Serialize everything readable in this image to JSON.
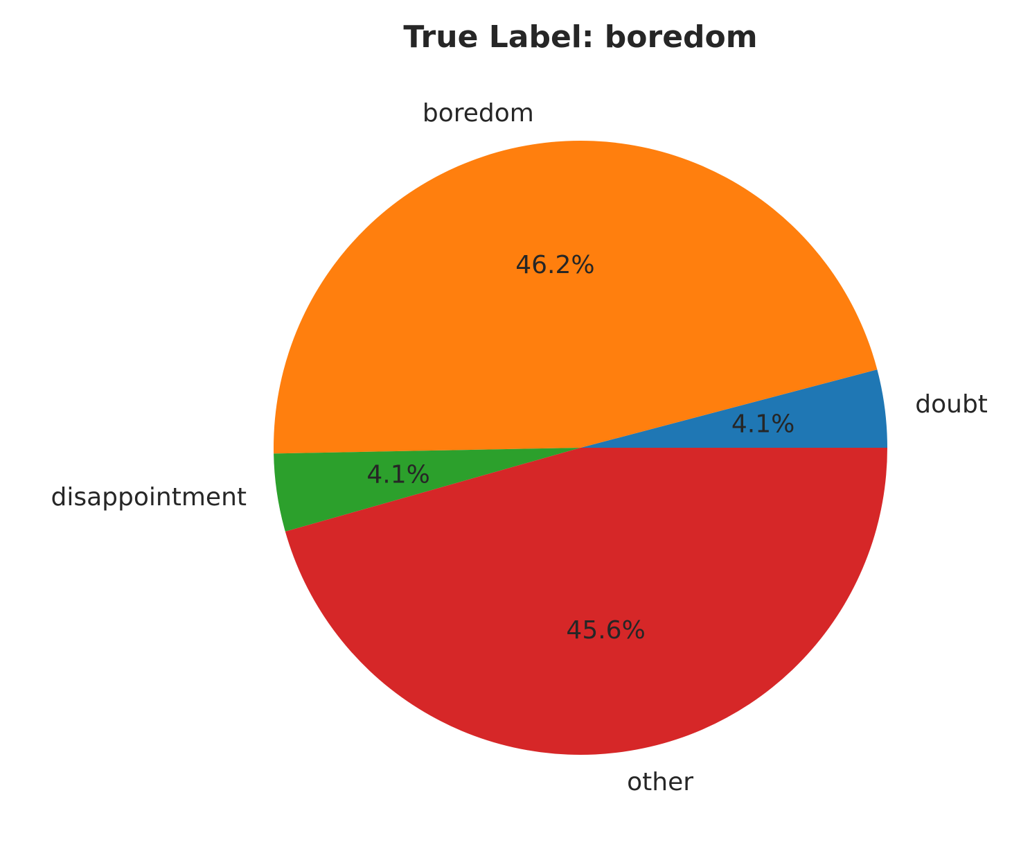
{
  "chart_data": {
    "type": "pie",
    "title": "True Label: boredom",
    "start_angle": 0,
    "direction": "counterclockwise",
    "slices": [
      {
        "label": "doubt",
        "value": 4.1,
        "pct_label": "4.1%",
        "color": "#1f77b4"
      },
      {
        "label": "boredom",
        "value": 46.2,
        "pct_label": "46.2%",
        "color": "#ff7f0e"
      },
      {
        "label": "disappointment",
        "value": 4.1,
        "pct_label": "4.1%",
        "color": "#2ca02c"
      },
      {
        "label": "other",
        "value": 45.6,
        "pct_label": "45.6%",
        "color": "#d62728"
      }
    ]
  }
}
